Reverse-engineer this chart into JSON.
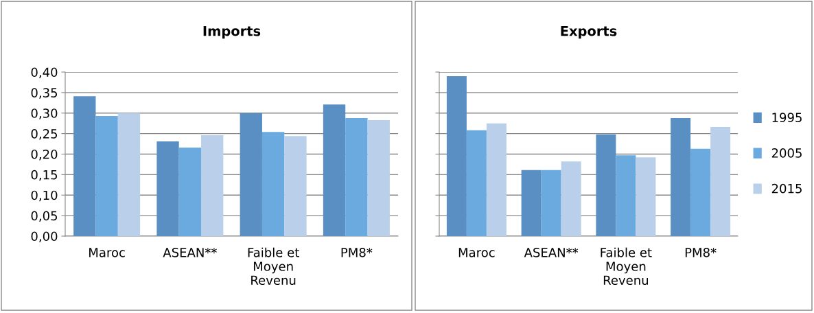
{
  "chart_data": [
    {
      "type": "bar",
      "title": "Imports",
      "categories": [
        "Maroc",
        "ASEAN**",
        "Faible et\nMoyen\nRevenu",
        "PM8*"
      ],
      "series": [
        {
          "name": "1995",
          "color": "#5a8fc3",
          "values": [
            0.341,
            0.231,
            0.3,
            0.321
          ]
        },
        {
          "name": "2005",
          "color": "#6aaadf",
          "values": [
            0.293,
            0.216,
            0.254,
            0.288
          ]
        },
        {
          "name": "2015",
          "color": "#b9cfea",
          "values": [
            0.3,
            0.246,
            0.244,
            0.283
          ]
        }
      ],
      "ylim": [
        0,
        0.4
      ],
      "yticks": [
        {
          "value": 0,
          "label": "0,00"
        },
        {
          "value": 0.05,
          "label": "0,05"
        },
        {
          "value": 0.1,
          "label": "0,10"
        },
        {
          "value": 0.15,
          "label": "0,15"
        },
        {
          "value": 0.2,
          "label": "0,20"
        },
        {
          "value": 0.25,
          "label": "0,25"
        },
        {
          "value": 0.3,
          "label": "0,30"
        },
        {
          "value": 0.35,
          "label": "0,35"
        },
        {
          "value": 0.4,
          "label": "0,40"
        }
      ],
      "grid": "y",
      "legend": "right"
    },
    {
      "type": "bar",
      "title": "Exports",
      "categories": [
        "Maroc",
        "ASEAN**",
        "Faible et\nMoyen\nRevenu",
        "PM8*"
      ],
      "series": [
        {
          "name": "1995",
          "color": "#5a8fc3",
          "values": [
            0.39,
            0.161,
            0.248,
            0.288
          ]
        },
        {
          "name": "2005",
          "color": "#6aaadf",
          "values": [
            0.258,
            0.161,
            0.197,
            0.213
          ]
        },
        {
          "name": "2015",
          "color": "#b9cfea",
          "values": [
            0.275,
            0.182,
            0.192,
            0.266
          ]
        }
      ],
      "ylim": [
        0,
        0.4
      ],
      "yticks": [
        0,
        0.05,
        0.1,
        0.15,
        0.2,
        0.25,
        0.3,
        0.35,
        0.4
      ],
      "grid": "y",
      "tick_labels": "x"
    }
  ]
}
